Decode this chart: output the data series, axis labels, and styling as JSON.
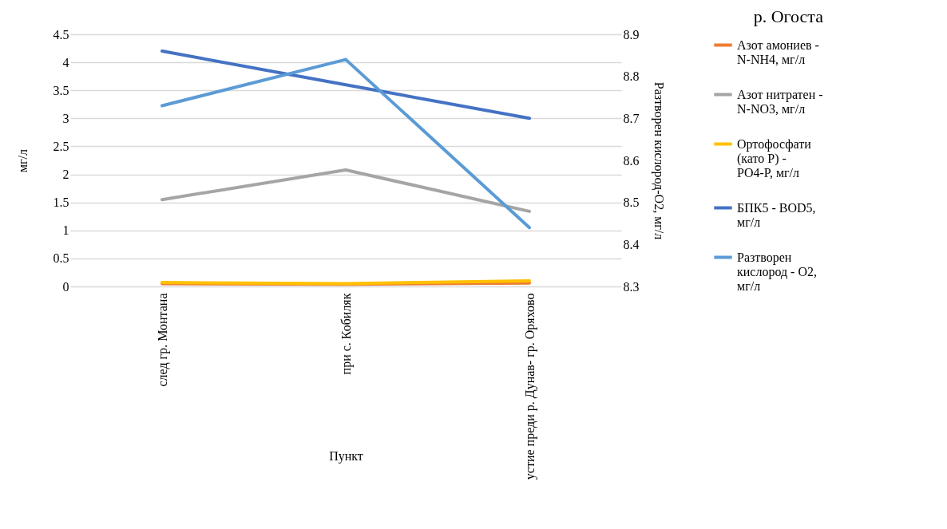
{
  "chart_data": {
    "type": "line",
    "title": "р. Огоста",
    "xlabel": "Пункт",
    "ylabel": "мг/л",
    "y2label": "Разтворен кислород-О2, мг/л",
    "categories": [
      "след гр. Монтана",
      "при с. Кобиляк",
      "устие преди  р. Дунав- гр. Оряхово"
    ],
    "series": [
      {
        "name": "Азот амониев - N-NH4,  мг/л",
        "color": "#ed7d31",
        "values": [
          0.05,
          0.04,
          0.06
        ]
      },
      {
        "name": "Азот нитратен - N-NO3, мг/л",
        "color": "#a5a5a5",
        "values": [
          1.55,
          2.08,
          1.34
        ]
      },
      {
        "name": "Ортофосфати (като Р) - PO4-P, мг/л",
        "color": "#ffc000",
        "values": [
          0.07,
          0.05,
          0.1
        ]
      },
      {
        "name": " БПК5 - BOD5, мг/л",
        "color": "#4472c4",
        "values": [
          4.2,
          3.6,
          3.0
        ]
      },
      {
        "name": "Разтворен кислород - O2, мг/л",
        "color": "#5b9bd5",
        "values": [
          8.73,
          8.84,
          8.44
        ],
        "axis": "y2"
      }
    ],
    "ylim": [
      0,
      4.5
    ],
    "yticks": [
      0,
      0.5,
      1,
      1.5,
      2,
      2.5,
      3,
      3.5,
      4,
      4.5
    ],
    "y2lim": [
      8.3,
      8.9
    ],
    "y2ticks": [
      8.3,
      8.4,
      8.5,
      8.6,
      8.7,
      8.8,
      8.9
    ],
    "grid": "y",
    "legend": "right",
    "marker": "none",
    "line_style": "solid"
  }
}
